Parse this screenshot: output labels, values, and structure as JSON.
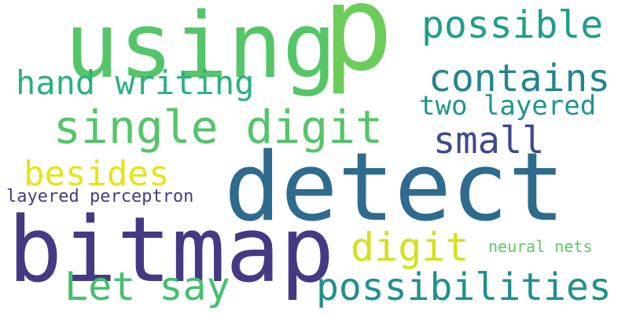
{
  "words": {
    "p": {
      "text": "p",
      "color": "#6ccd5a"
    },
    "using": {
      "text": "using",
      "color": "#55c667"
    },
    "possible": {
      "text": "possible",
      "color": "#1f9e89"
    },
    "contains": {
      "text": "contains",
      "color": "#25858e"
    },
    "hand_writing": {
      "text": "hand writing",
      "color": "#2ab07f"
    },
    "two_layered": {
      "text": "two layered",
      "color": "#1f968b"
    },
    "single_digit": {
      "text": "single digit",
      "color": "#54c568"
    },
    "small": {
      "text": "small",
      "color": "#3e4a89"
    },
    "besides": {
      "text": "besides",
      "color": "#e5e419"
    },
    "detect": {
      "text": "detect",
      "color": "#2e6b8e"
    },
    "layered_perceptron": {
      "text": "layered perceptron",
      "color": "#433e85"
    },
    "bitmap": {
      "text": "bitmap",
      "color": "#443a83"
    },
    "digit": {
      "text": "digit",
      "color": "#d2e21b"
    },
    "neural_nets": {
      "text": "neural nets",
      "color": "#5cc863"
    },
    "let_say": {
      "text": "Let say",
      "color": "#44bf70"
    },
    "possibilities": {
      "text": "possibilities",
      "color": "#21908d"
    }
  }
}
